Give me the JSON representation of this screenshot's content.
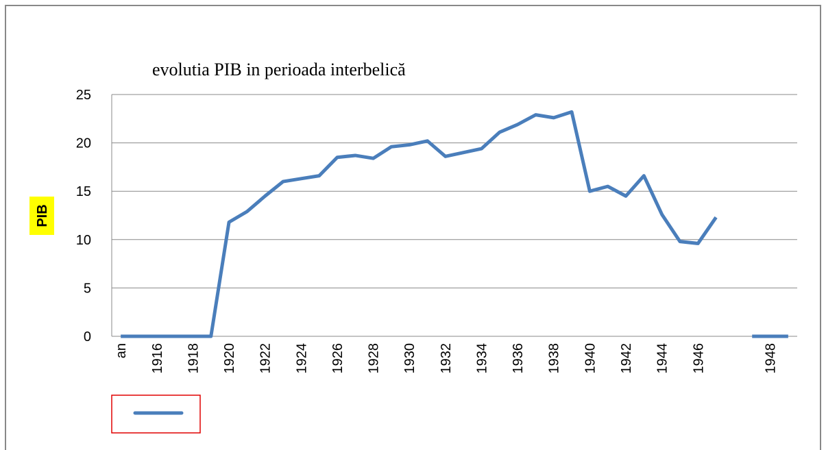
{
  "chart_data": {
    "type": "line",
    "title": "evolutia PIB in perioada interbelică",
    "y_label": "PIB",
    "categories": [
      "an",
      null,
      "1916",
      null,
      "1918",
      null,
      "1920",
      null,
      "1922",
      null,
      "1924",
      null,
      "1926",
      null,
      "1928",
      null,
      "1930",
      null,
      "1932",
      null,
      "1934",
      null,
      "1936",
      null,
      "1938",
      null,
      "1940",
      null,
      "1942",
      null,
      "1944",
      null,
      "1946",
      null,
      null,
      null,
      "1948",
      null
    ],
    "series": [
      {
        "color": "#4a7ebb",
        "values": [
          0,
          0,
          0,
          0,
          0,
          0,
          11.8,
          12.9,
          14.5,
          16.0,
          16.3,
          16.6,
          18.5,
          18.7,
          18.4,
          19.6,
          19.8,
          20.2,
          18.6,
          19.0,
          19.4,
          21.1,
          21.9,
          22.9,
          22.6,
          23.2,
          15.0,
          15.5,
          14.5,
          16.6,
          12.6,
          9.8,
          9.6,
          12.3,
          null,
          0,
          0,
          0
        ]
      }
    ],
    "ylim": [
      0,
      25
    ],
    "yticks": [
      0,
      5,
      10,
      15,
      20,
      25
    ],
    "grid": true
  }
}
